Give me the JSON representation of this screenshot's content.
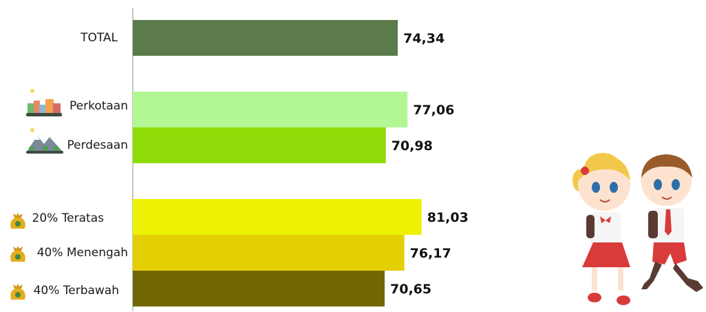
{
  "chart_data": {
    "type": "bar",
    "orientation": "horizontal",
    "categories": [
      "TOTAL",
      "Perkotaan",
      "Perdesaan",
      "20% Teratas",
      "40% Menengah",
      "40% Terbawah"
    ],
    "values": [
      "74,34",
      "77,06",
      "70,98",
      "81,03",
      "76,17",
      "70,65"
    ],
    "numeric_values": [
      74.34,
      77.06,
      70.98,
      81.03,
      76.17,
      70.65
    ],
    "colors": [
      "#5b7b4b",
      "#b3f795",
      "#8fdb07",
      "#edf104",
      "#e3cf03",
      "#716804"
    ],
    "icons": [
      null,
      "city-icon",
      "village-icon",
      "money-bag-icon",
      "money-bag-icon",
      "money-bag-icon"
    ],
    "title": "",
    "xlabel": "",
    "ylabel": "",
    "xlim": [
      0,
      100
    ],
    "grid": false,
    "legend": "none"
  },
  "decoration": {
    "illustration": "school-children-illustration"
  }
}
